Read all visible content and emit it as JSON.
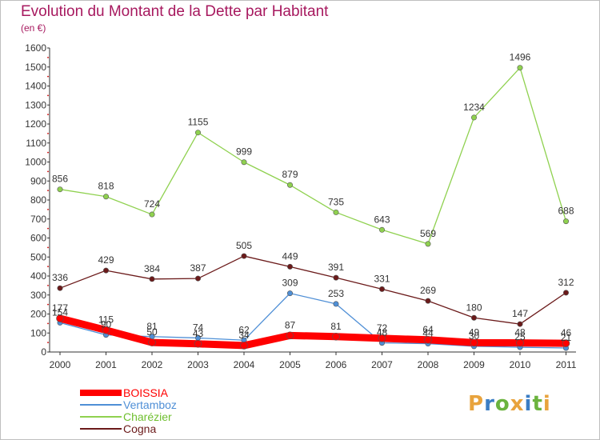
{
  "title": "Evolution du Montant de la Dette par Habitant",
  "subtitle": "(en €)",
  "logo": {
    "text": "Proxiti",
    "colors": [
      "#e8a33d",
      "#3b7dc4",
      "#6bb33e",
      "#e8a33d",
      "#3b7dc4",
      "#6bb33e",
      "#e8a33d"
    ]
  },
  "chart_data": {
    "type": "line",
    "x": [
      "2000",
      "2001",
      "2002",
      "2003",
      "2004",
      "2005",
      "2006",
      "2007",
      "2008",
      "2009",
      "2010",
      "2011"
    ],
    "ylim": [
      0,
      1600
    ],
    "yticks": [
      0,
      100,
      200,
      300,
      400,
      500,
      600,
      700,
      800,
      900,
      1000,
      1100,
      1200,
      1300,
      1400,
      1500,
      1600
    ],
    "grid": false,
    "legend_position": "bottom-left",
    "series": [
      {
        "name": "BOISSIA",
        "color": "#ff0000",
        "values": [
          177,
          115,
          50,
          43,
          34,
          87,
          81,
          72,
          64,
          49,
          48,
          46
        ]
      },
      {
        "name": "Vertamboz",
        "color": "#4f8fd6",
        "values": [
          154,
          90,
          81,
          74,
          62,
          309,
          253,
          48,
          44,
          30,
          25,
          21
        ]
      },
      {
        "name": "Charézier",
        "color": "#8fd14f",
        "values": [
          856,
          818,
          724,
          1155,
          999,
          879,
          735,
          643,
          569,
          1234,
          1496,
          688
        ]
      },
      {
        "name": "Cogna",
        "color": "#6b1a1a",
        "values": [
          336,
          429,
          384,
          387,
          505,
          449,
          391,
          331,
          269,
          180,
          147,
          312
        ]
      }
    ]
  }
}
